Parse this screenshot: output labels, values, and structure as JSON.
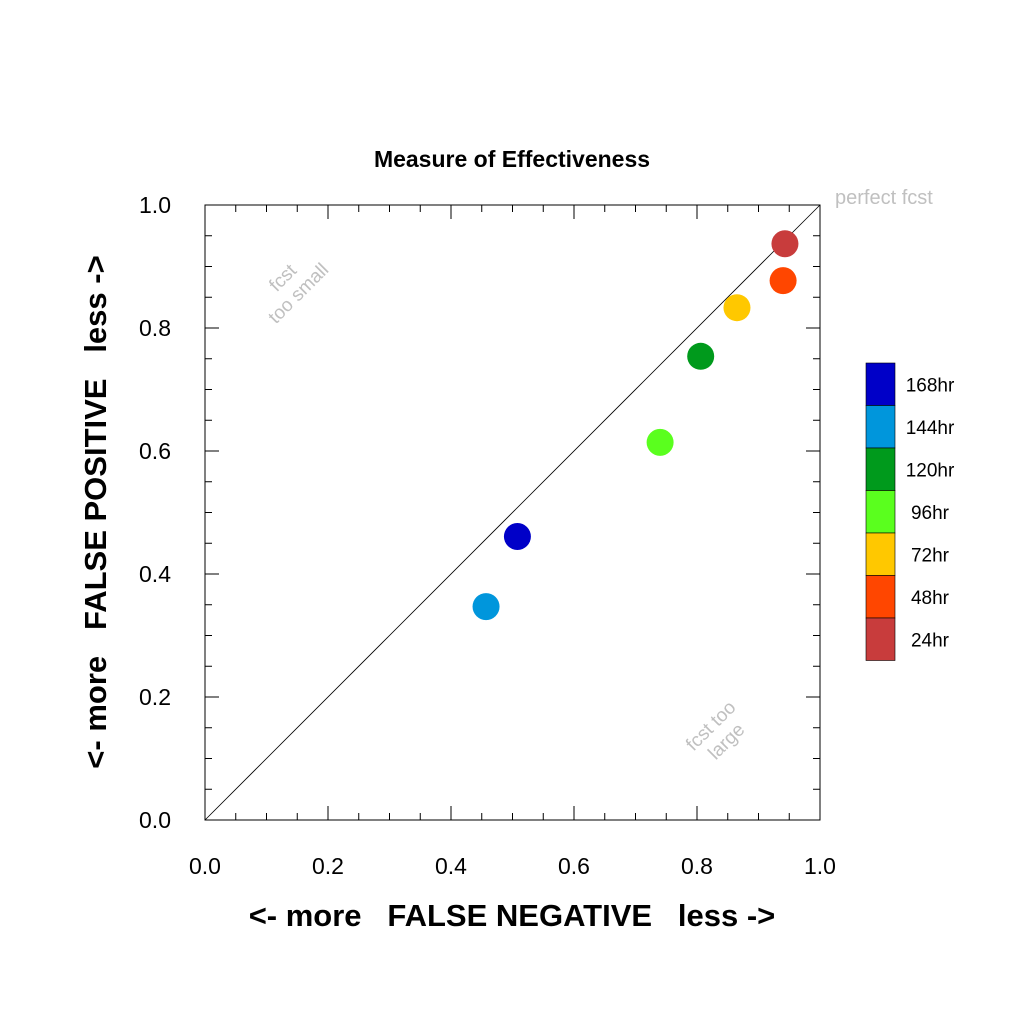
{
  "chart_data": {
    "type": "scatter",
    "title": "Measure of Effectiveness",
    "xlabel": "<- more   FALSE NEGATIVE   less ->",
    "ylabel": "<- more   FALSE POSITIVE   less ->",
    "xlim": [
      0,
      1
    ],
    "ylim": [
      0,
      1
    ],
    "x_ticks": [
      "0.0",
      "0.2",
      "0.4",
      "0.6",
      "0.8",
      "1.0"
    ],
    "y_ticks": [
      "0.0",
      "0.2",
      "0.4",
      "0.6",
      "0.8",
      "1.0"
    ],
    "grid": false,
    "diagonal_line": true,
    "annotations": {
      "perfect": "perfect fcst",
      "too_small_line1": "fcst",
      "too_small_line2": "too small",
      "too_large_line1": "fcst too",
      "too_large_line2": "large"
    },
    "legend_position": "right",
    "series": [
      {
        "name": "168hr",
        "color": "#0000c8",
        "x": 0.508,
        "y": 0.461
      },
      {
        "name": "144hr",
        "color": "#0096dc",
        "x": 0.457,
        "y": 0.347
      },
      {
        "name": "120hr",
        "color": "#009a1c",
        "x": 0.806,
        "y": 0.754
      },
      {
        "name": "96hr",
        "color": "#5aff1e",
        "x": 0.74,
        "y": 0.614
      },
      {
        "name": "72hr",
        "color": "#ffc800",
        "x": 0.865,
        "y": 0.833
      },
      {
        "name": "48hr",
        "color": "#ff4600",
        "x": 0.94,
        "y": 0.877
      },
      {
        "name": "24hr",
        "color": "#c83c3c",
        "x": 0.943,
        "y": 0.937
      }
    ]
  }
}
